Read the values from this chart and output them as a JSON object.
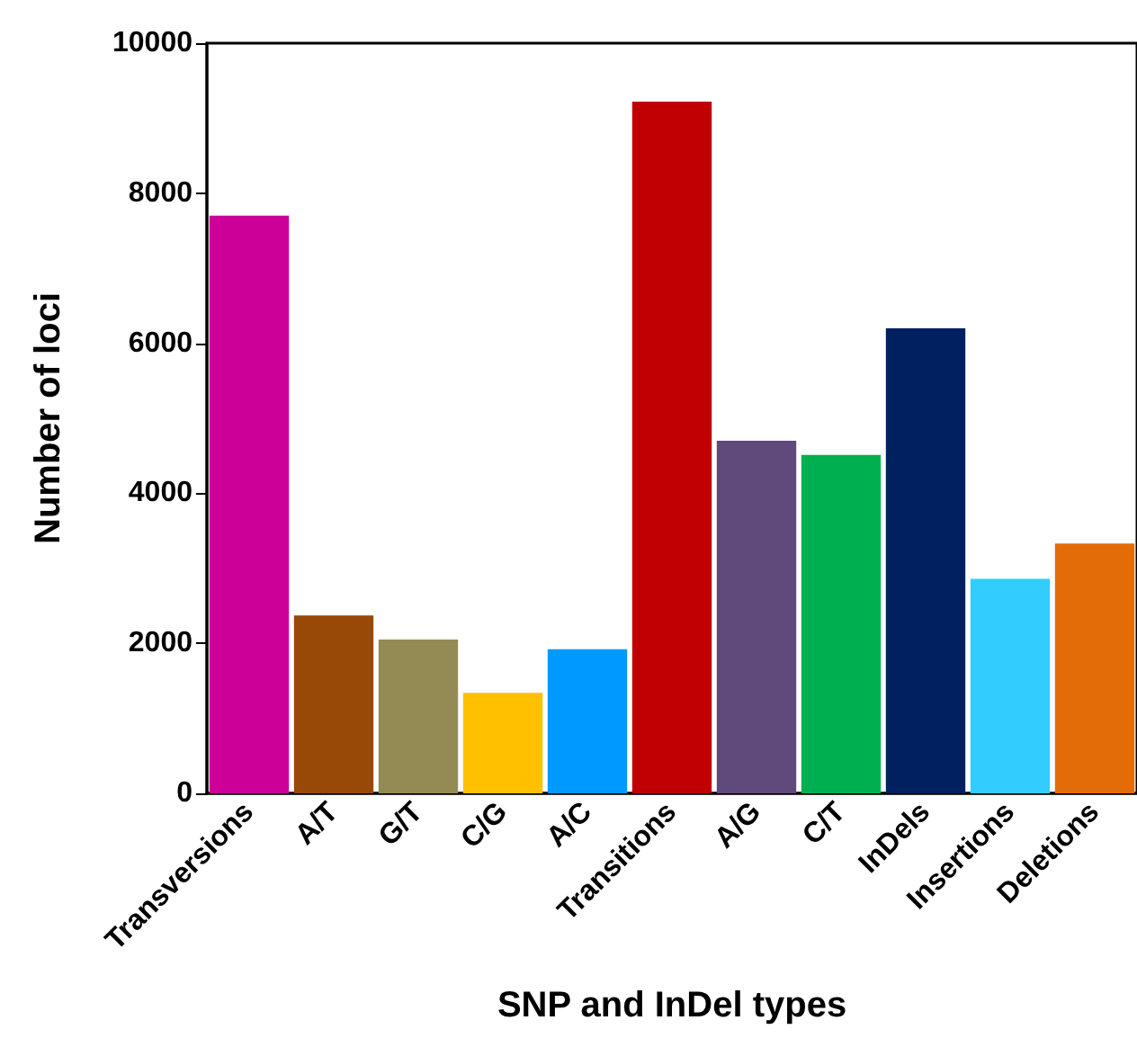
{
  "chart_data": {
    "type": "bar",
    "xlabel": "SNP and InDel types",
    "ylabel": "Number of loci",
    "categories": [
      "Transversions",
      "A/T",
      "G/T",
      "C/G",
      "A/C",
      "Transitions",
      "A/G",
      "C/T",
      "InDels",
      "Insertions",
      "Deletions"
    ],
    "values": [
      7700,
      2370,
      2050,
      1340,
      1920,
      9220,
      4700,
      4510,
      6200,
      2860,
      3330
    ],
    "colors": [
      "#cc0099",
      "#984807",
      "#948a54",
      "#ffc000",
      "#0099ff",
      "#c00000",
      "#604a7b",
      "#00b050",
      "#002060",
      "#33ccff",
      "#e36c09"
    ],
    "ylim": [
      0,
      10000
    ],
    "yticks": [
      0,
      2000,
      4000,
      6000,
      8000,
      10000
    ]
  }
}
